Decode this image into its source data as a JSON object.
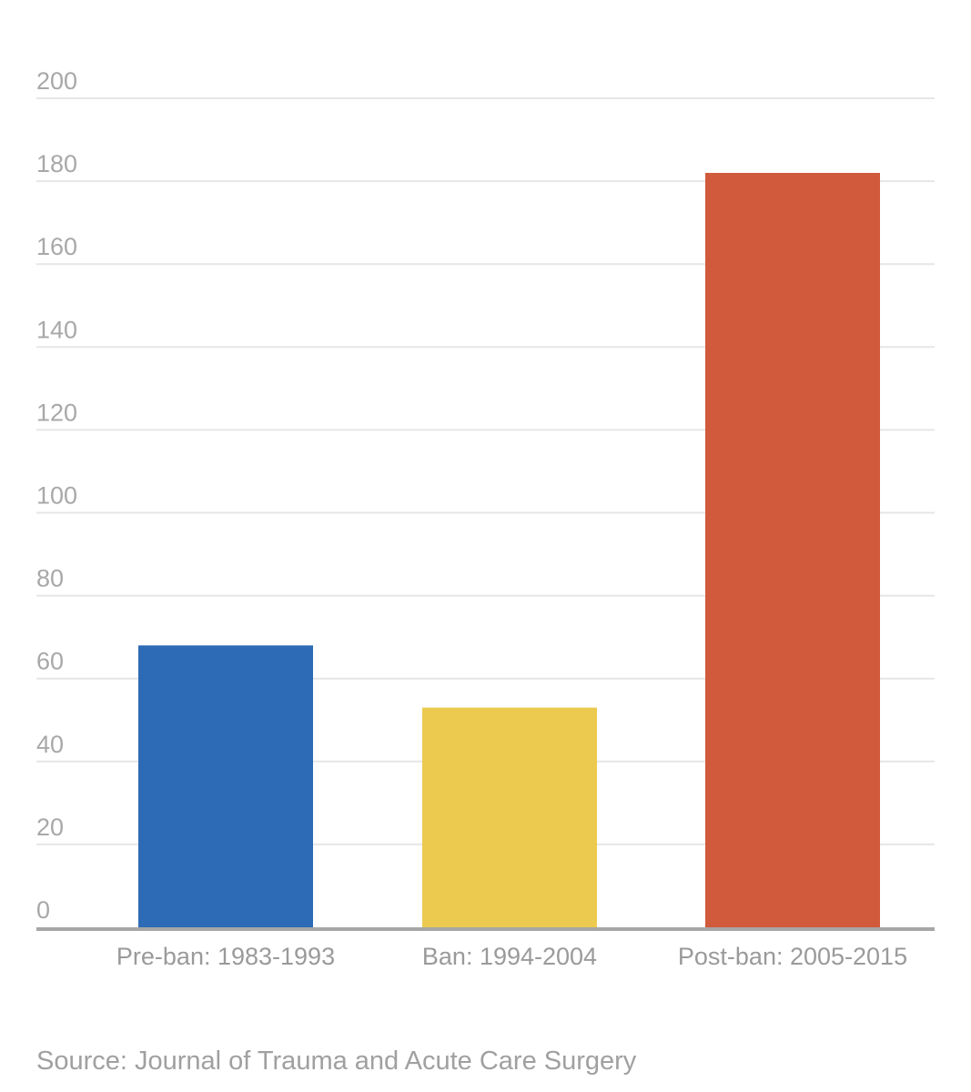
{
  "chart_data": {
    "type": "bar",
    "title": "",
    "xlabel": "",
    "ylabel": "",
    "categories": [
      "Pre-ban: 1983-1993",
      "Ban: 1994-2004",
      "Post-ban: 2005-2015"
    ],
    "values": [
      68,
      53,
      182
    ],
    "colors": [
      "#2d6bb6",
      "#ecc94f",
      "#d05a3b"
    ],
    "ylim": [
      0,
      200
    ],
    "yticks": [
      0,
      20,
      40,
      60,
      80,
      100,
      120,
      140,
      160,
      180,
      200
    ],
    "grid": true,
    "legend": "none"
  },
  "source": "Source: Journal of Trauma and Acute Care Surgery"
}
